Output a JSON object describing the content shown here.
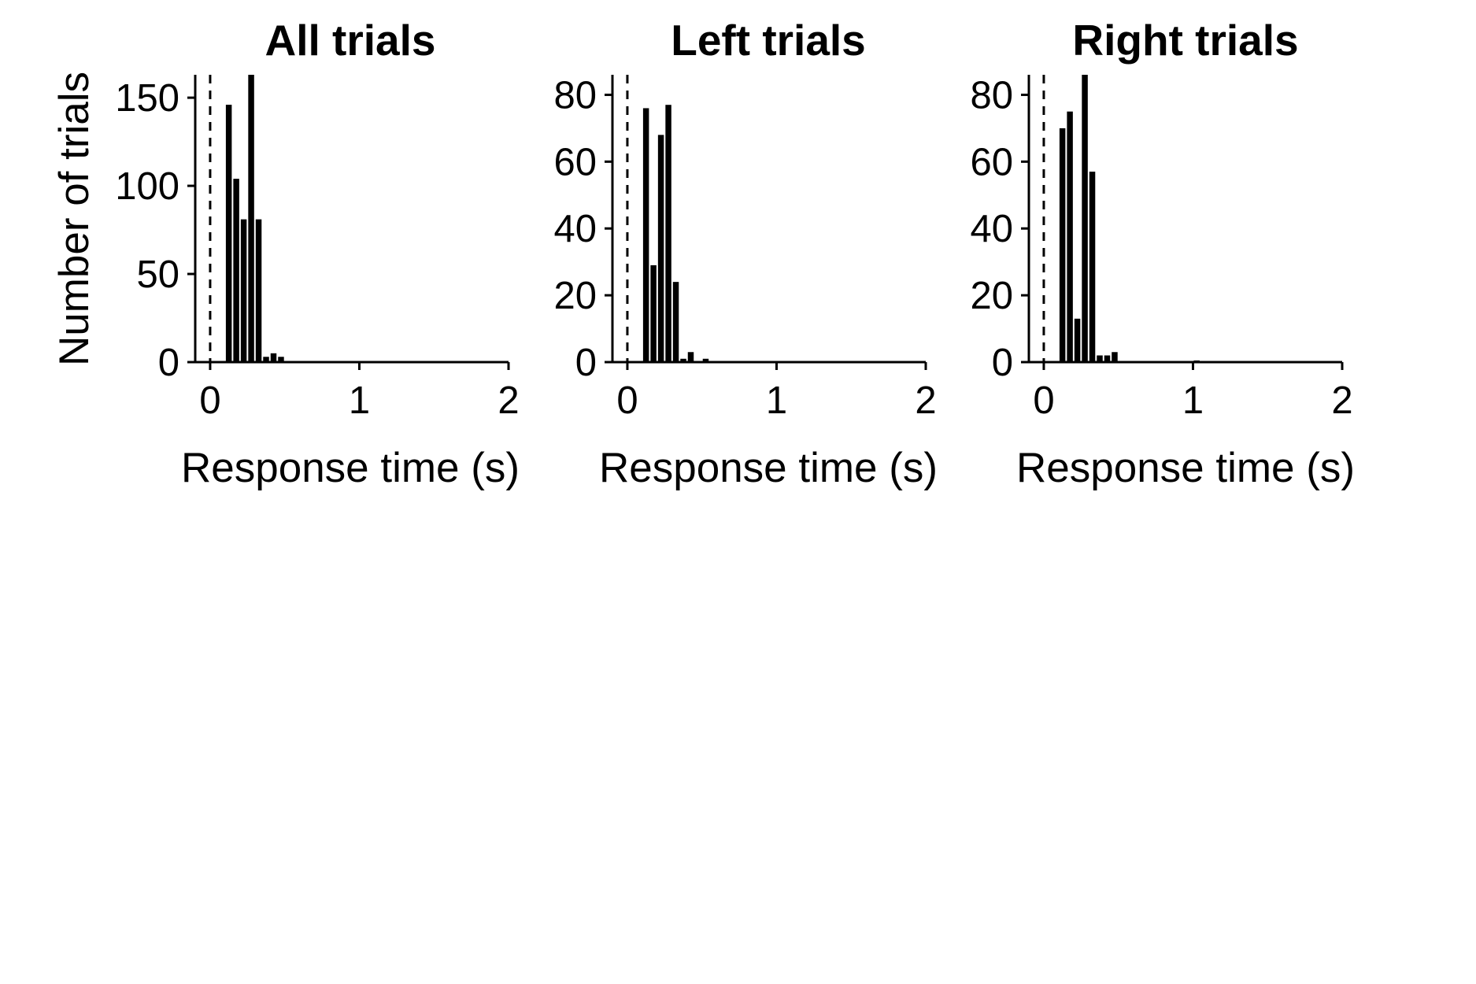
{
  "chart_data": [
    {
      "type": "bar",
      "title": "All trials",
      "xlabel": "Response time (s)",
      "ylabel": "Number of trials",
      "xlim": [
        -0.1,
        2.0
      ],
      "ylim": [
        0,
        163
      ],
      "x_ticks": [
        0,
        1,
        2
      ],
      "y_ticks": [
        0,
        50,
        100,
        150
      ],
      "bin_width": 0.05,
      "reference_line": {
        "x": 0,
        "style": "dashed"
      },
      "bins": [
        0.1,
        0.15,
        0.2,
        0.25,
        0.3,
        0.35,
        0.4,
        0.45
      ],
      "values": [
        146,
        104,
        81,
        163,
        81,
        3,
        5,
        3
      ],
      "grid": false,
      "legend": "none"
    },
    {
      "type": "bar",
      "title": "Left trials",
      "xlabel": "Response time (s)",
      "ylabel": "",
      "xlim": [
        -0.1,
        2.0
      ],
      "ylim": [
        0,
        86
      ],
      "x_ticks": [
        0,
        1,
        2
      ],
      "y_ticks": [
        0,
        20,
        40,
        60,
        80
      ],
      "bin_width": 0.05,
      "reference_line": {
        "x": 0,
        "style": "dashed"
      },
      "bins": [
        0.1,
        0.15,
        0.2,
        0.25,
        0.3,
        0.35,
        0.4,
        0.45,
        0.5
      ],
      "values": [
        76,
        29,
        68,
        77,
        24,
        1,
        3,
        0,
        1
      ],
      "grid": false,
      "legend": "none"
    },
    {
      "type": "bar",
      "title": "Right trials",
      "xlabel": "Response time (s)",
      "ylabel": "",
      "xlim": [
        -0.1,
        2.0
      ],
      "ylim": [
        0,
        86
      ],
      "x_ticks": [
        0,
        1,
        2
      ],
      "y_ticks": [
        0,
        20,
        40,
        60,
        80
      ],
      "bin_width": 0.05,
      "reference_line": {
        "x": 0,
        "style": "dashed"
      },
      "bins": [
        0.1,
        0.15,
        0.2,
        0.25,
        0.3,
        0.35,
        0.4,
        0.45,
        1.0
      ],
      "values": [
        70,
        75,
        13,
        86,
        57,
        2,
        2,
        3,
        0.5
      ],
      "grid": false,
      "legend": "none"
    }
  ]
}
